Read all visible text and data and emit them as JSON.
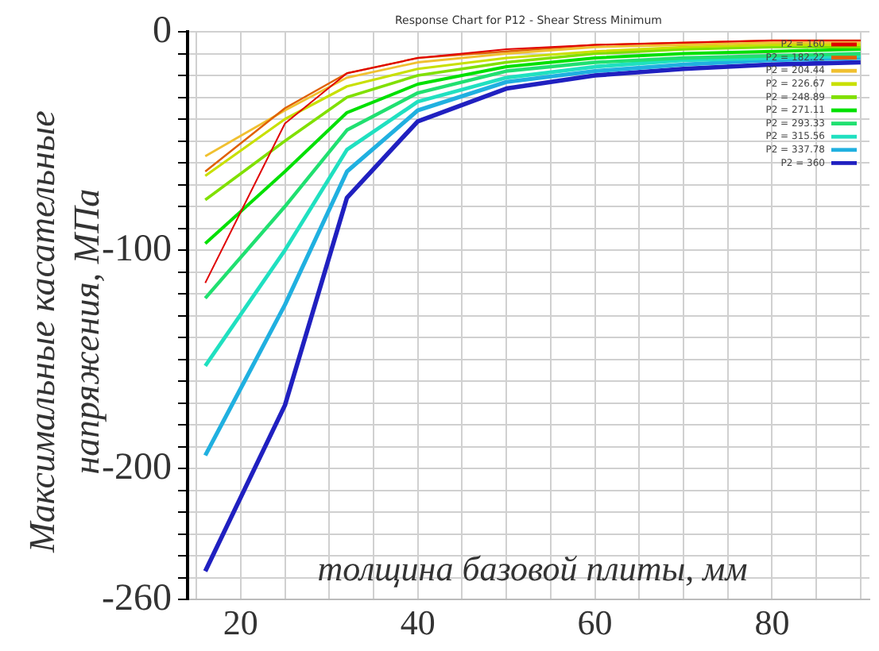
{
  "chart_data": {
    "type": "line",
    "title": "Response Chart for P12 - Shear Stress Minimum",
    "xlabel": "толщина базовой плиты, мм",
    "ylabel": "Максимальные касательные напряжения, МПа",
    "x": [
      16,
      25,
      32,
      40,
      50,
      60,
      70,
      80,
      90
    ],
    "series": [
      {
        "name": "P2 = 160",
        "color": "#e00000",
        "values": [
          -115,
          -42,
          -19,
          -12,
          -8,
          -6,
          -5,
          -4,
          -4
        ]
      },
      {
        "name": "P2 = 182.22",
        "color": "#e06000",
        "values": [
          -64,
          -35,
          -19,
          -12,
          -9,
          -6,
          -5,
          -4,
          -4
        ]
      },
      {
        "name": "P2 = 204.44",
        "color": "#f0c030",
        "values": [
          -57,
          -36,
          -21,
          -14,
          -10,
          -7,
          -6,
          -5,
          -5
        ]
      },
      {
        "name": "P2 = 226.67",
        "color": "#c8e000",
        "values": [
          -66,
          -40,
          -25,
          -17,
          -12,
          -9,
          -7,
          -6,
          -6
        ]
      },
      {
        "name": "P2 = 248.89",
        "color": "#80e000",
        "values": [
          -77,
          -50,
          -30,
          -20,
          -14,
          -10,
          -8,
          -7,
          -7
        ]
      },
      {
        "name": "P2 = 271.11",
        "color": "#00e000",
        "values": [
          -97,
          -64,
          -37,
          -24,
          -16,
          -12,
          -10,
          -9,
          -8
        ]
      },
      {
        "name": "P2 = 293.33",
        "color": "#20e070",
        "values": [
          -122,
          -80,
          -45,
          -28,
          -18,
          -14,
          -12,
          -11,
          -10
        ]
      },
      {
        "name": "P2 = 315.56",
        "color": "#20e0c0",
        "values": [
          -153,
          -100,
          -54,
          -32,
          -21,
          -16,
          -13,
          -12,
          -11
        ]
      },
      {
        "name": "P2 = 337.78",
        "color": "#20b0e0",
        "values": [
          -194,
          -125,
          -64,
          -36,
          -23,
          -18,
          -15,
          -13,
          -12
        ]
      },
      {
        "name": "P2 = 360",
        "color": "#2020c0",
        "values": [
          -247,
          -171,
          -76,
          -41,
          -26,
          -20,
          -17,
          -15,
          -14
        ]
      }
    ],
    "xlim": [
      14,
      91
    ],
    "xticks": [
      {
        "value": 15,
        "label": null
      },
      20,
      {
        "value": 25,
        "label": null
      },
      {
        "value": 30,
        "label": null
      },
      {
        "value": 35,
        "label": null
      },
      40,
      {
        "value": 45,
        "label": null
      },
      {
        "value": 50,
        "label": null
      },
      {
        "value": 55,
        "label": null
      },
      60,
      {
        "value": 65,
        "label": null
      },
      {
        "value": 70,
        "label": null
      },
      {
        "value": 75,
        "label": null
      },
      80,
      {
        "value": 85,
        "label": null
      },
      {
        "value": 90,
        "label": null
      }
    ],
    "ylim": [
      -260,
      0
    ],
    "yticks": [
      -260,
      {
        "value": -250,
        "label": null
      },
      {
        "value": -240,
        "label": null
      },
      {
        "value": -230,
        "label": null
      },
      {
        "value": -220,
        "label": null
      },
      {
        "value": -210,
        "label": null
      },
      -200,
      {
        "value": -190,
        "label": null
      },
      {
        "value": -180,
        "label": null
      },
      {
        "value": -170,
        "label": null
      },
      {
        "value": -160,
        "label": null
      },
      {
        "value": -150,
        "label": null
      },
      {
        "value": -140,
        "label": null
      },
      {
        "value": -130,
        "label": null
      },
      {
        "value": -120,
        "label": null
      },
      {
        "value": -110,
        "label": null
      },
      -100,
      {
        "value": -90,
        "label": null
      },
      {
        "value": -80,
        "label": null
      },
      {
        "value": -70,
        "label": null
      },
      {
        "value": -60,
        "label": null
      },
      {
        "value": -50,
        "label": null
      },
      {
        "value": -40,
        "label": null
      },
      {
        "value": -30,
        "label": null
      },
      {
        "value": -20,
        "label": null
      },
      {
        "value": -10,
        "label": null
      },
      0
    ],
    "grid": true,
    "legend": "top right",
    "marker": "none",
    "line_style": "solid"
  }
}
